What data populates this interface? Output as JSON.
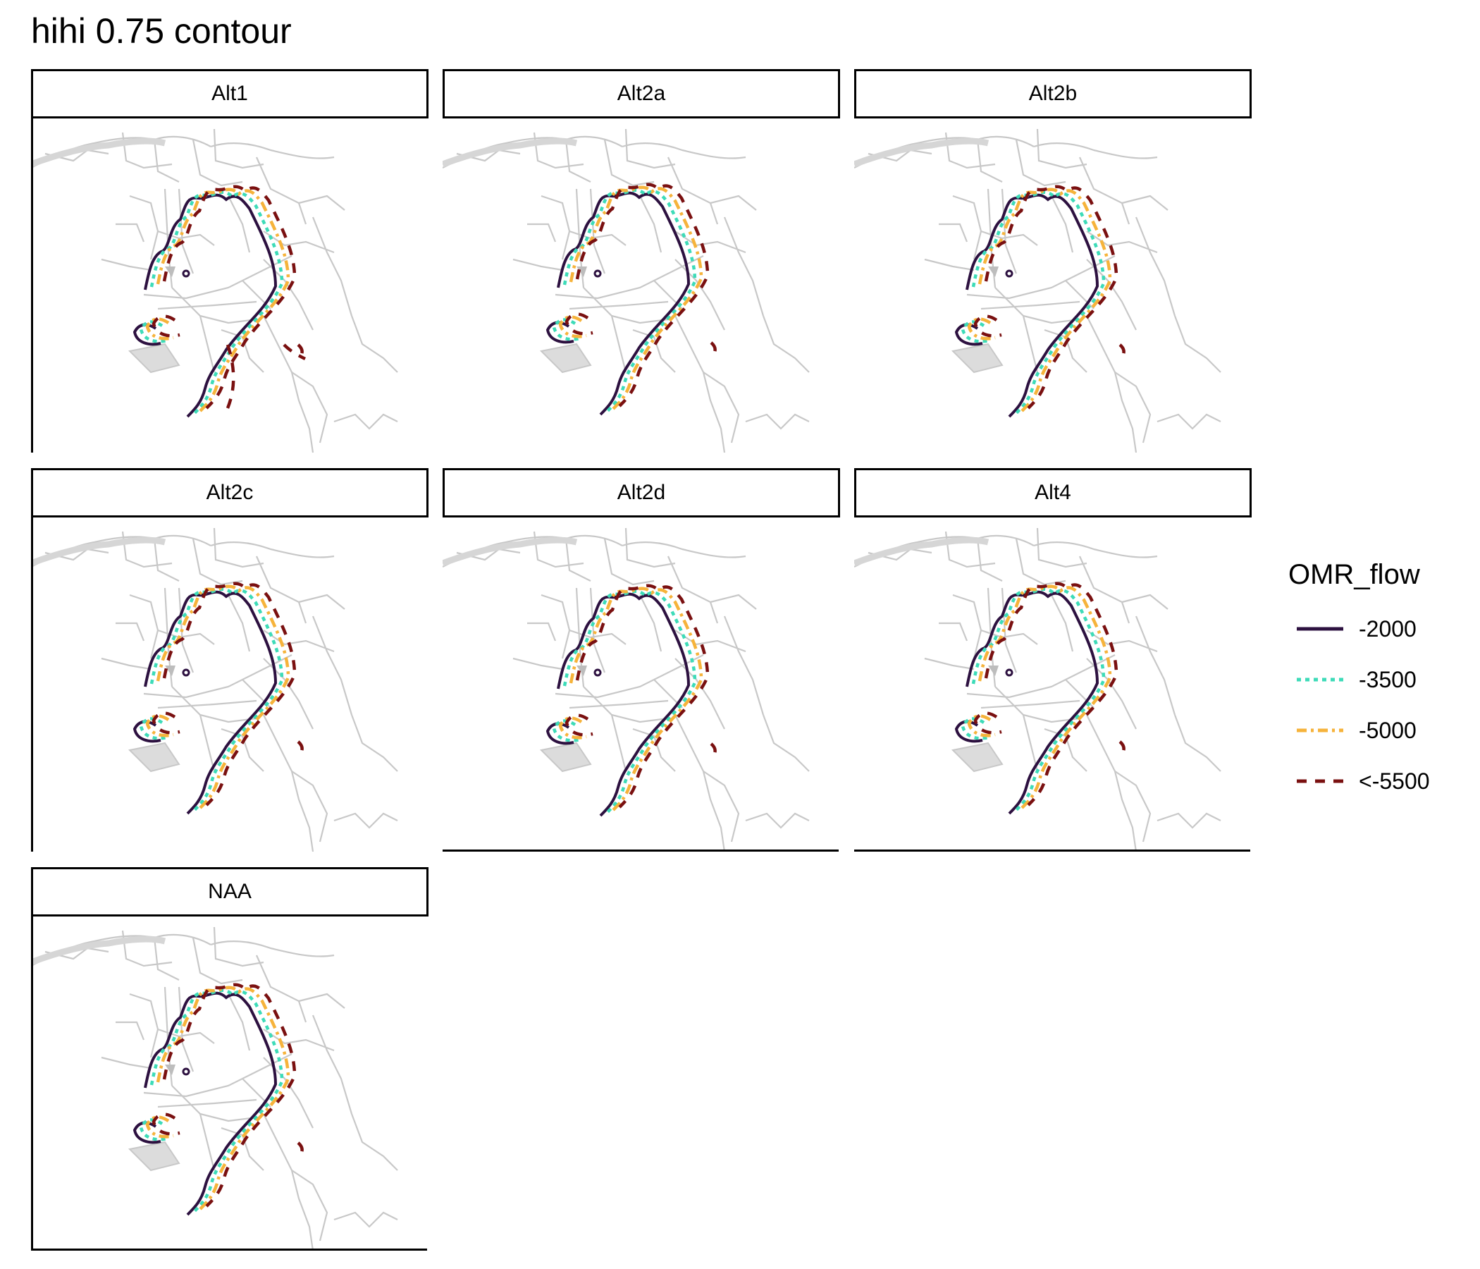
{
  "title": "hihi 0.75 contour",
  "panels": [
    {
      "label": "Alt1",
      "variant": 1
    },
    {
      "label": "Alt2a",
      "variant": 2
    },
    {
      "label": "Alt2b",
      "variant": 3
    },
    {
      "label": "Alt2c",
      "variant": 4
    },
    {
      "label": "Alt2d",
      "variant": 5
    },
    {
      "label": "Alt4",
      "variant": 6
    },
    {
      "label": "NAA",
      "variant": 7
    }
  ],
  "legend": {
    "title": "OMR_flow",
    "items": [
      {
        "label": "-2000",
        "color": "#2d1140",
        "dash": "solid"
      },
      {
        "label": "-3500",
        "color": "#3ddbb8",
        "dash": "dotted"
      },
      {
        "label": "-5000",
        "color": "#f6b33b",
        "dash": "dashdot"
      },
      {
        "label": "<-5500",
        "color": "#7a1010",
        "dash": "dashed"
      }
    ]
  },
  "colors": {
    "basemap": "#c8c8c8",
    "axis": "#000000"
  }
}
